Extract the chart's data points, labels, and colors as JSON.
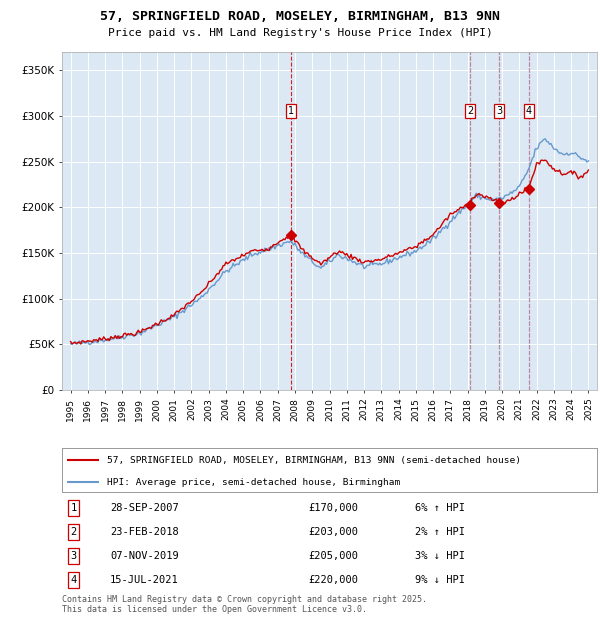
{
  "title": "57, SPRINGFIELD ROAD, MOSELEY, BIRMINGHAM, B13 9NN",
  "subtitle": "Price paid vs. HM Land Registry's House Price Index (HPI)",
  "legend_line1": "57, SPRINGFIELD ROAD, MOSELEY, BIRMINGHAM, B13 9NN (semi-detached house)",
  "legend_line2": "HPI: Average price, semi-detached house, Birmingham",
  "footnote": "Contains HM Land Registry data © Crown copyright and database right 2025.\nThis data is licensed under the Open Government Licence v3.0.",
  "purchases": [
    {
      "num": 1,
      "date": "28-SEP-2007",
      "price": 170000,
      "pct": "6%",
      "dir": "↑",
      "year": 2007.75
    },
    {
      "num": 2,
      "date": "23-FEB-2018",
      "price": 203000,
      "pct": "2%",
      "dir": "↑",
      "year": 2018.15
    },
    {
      "num": 3,
      "date": "07-NOV-2019",
      "price": 205000,
      "pct": "3%",
      "dir": "↓",
      "year": 2019.85
    },
    {
      "num": 4,
      "date": "15-JUL-2021",
      "price": 220000,
      "pct": "9%",
      "dir": "↓",
      "year": 2021.54
    }
  ],
  "background_color": "#ffffff",
  "plot_bg_color": "#dce9f5",
  "red_line_color": "#cc0000",
  "blue_line_color": "#6699cc",
  "grid_color": "#ffffff",
  "vline_red_color": "#cc0000",
  "vline_blue_color": "#aabbdd",
  "ylim": [
    0,
    370000
  ],
  "yticks": [
    0,
    50000,
    100000,
    150000,
    200000,
    250000,
    300000,
    350000
  ],
  "ytick_labels": [
    "£0",
    "£50K",
    "£100K",
    "£150K",
    "£200K",
    "£250K",
    "£300K",
    "£350K"
  ],
  "xlim_start": 1994.5,
  "xlim_end": 2025.5,
  "xticks": [
    1995,
    1996,
    1997,
    1998,
    1999,
    2000,
    2001,
    2002,
    2003,
    2004,
    2005,
    2006,
    2007,
    2008,
    2009,
    2010,
    2011,
    2012,
    2013,
    2014,
    2015,
    2016,
    2017,
    2018,
    2019,
    2020,
    2021,
    2022,
    2023,
    2024,
    2025
  ]
}
